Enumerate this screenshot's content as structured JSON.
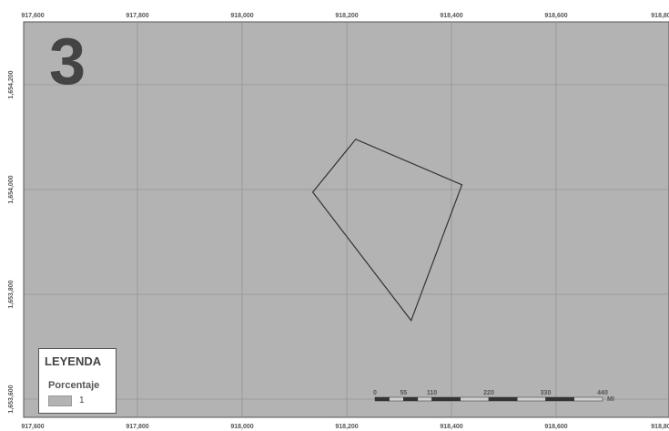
{
  "map": {
    "number_label": "3",
    "x_ticks": [
      "917,600",
      "917,800",
      "918,000",
      "918,200",
      "918,400",
      "918,600",
      "918,80"
    ],
    "y_ticks": [
      "1,654,200",
      "1,654,000",
      "1,653,800",
      "1,653,600"
    ],
    "polygon": [
      [
        918135,
        1653995
      ],
      [
        918217,
        1654096
      ],
      [
        918420,
        1654009
      ],
      [
        918323,
        1653750
      ]
    ],
    "colors": {
      "background": "#b3b3b3",
      "grid": "#8a8a8a",
      "polygon_stroke": "#333333"
    }
  },
  "scale_bar": {
    "labels": [
      "0",
      "55",
      "110",
      "220",
      "330",
      "440"
    ],
    "unit": "MI"
  },
  "legend": {
    "title": "LEYENDA",
    "subtitle": "Porcentaje",
    "items": [
      {
        "label": "1",
        "color": "#b3b3b3"
      }
    ]
  }
}
